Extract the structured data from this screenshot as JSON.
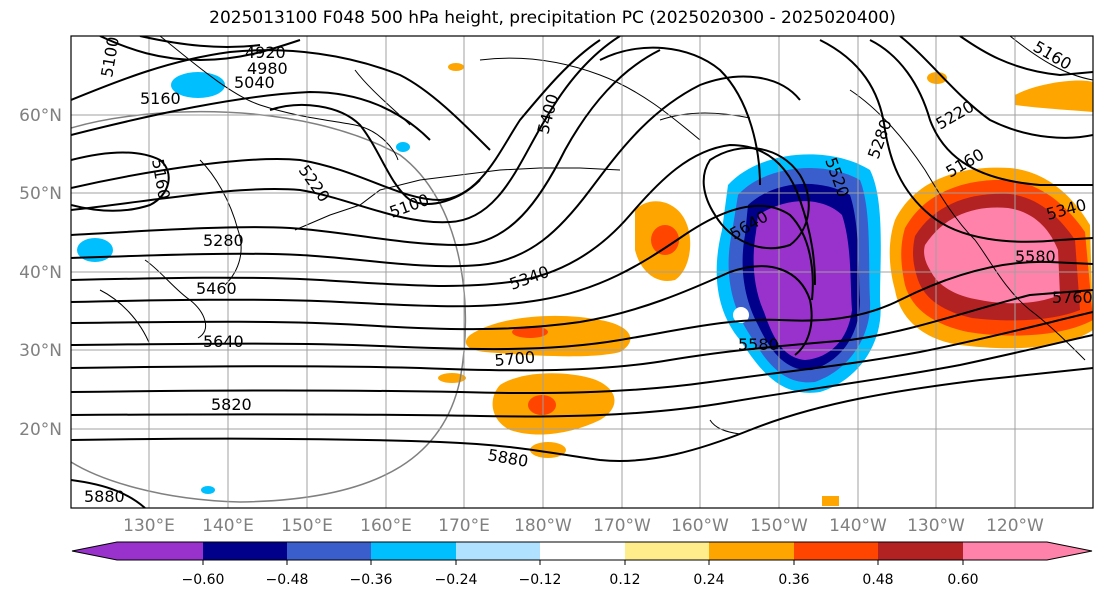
{
  "title": "2025013100 F048 500 hPa height, precipitation PC (2025020300 - 2025020400)",
  "lat_labels": [
    "60°N",
    "50°N",
    "40°N",
    "30°N",
    "20°N"
  ],
  "lon_labels": [
    "130°E",
    "140°E",
    "150°E",
    "160°E",
    "170°E",
    "180°W",
    "170°W",
    "160°W",
    "150°W",
    "140°W",
    "130°W",
    "120°W"
  ],
  "contour_labels": [
    "5100",
    "4920",
    "4980",
    "5040",
    "5160",
    "5160",
    "5220",
    "5100",
    "5400",
    "5280",
    "5460",
    "5340",
    "5640",
    "5700",
    "5820",
    "5880",
    "5880",
    "5580",
    "5640",
    "5520",
    "5160",
    "5220",
    "5280",
    "5340",
    "5580",
    "5760"
  ],
  "colorbar": {
    "ticks": [
      "−0.60",
      "−0.48",
      "−0.36",
      "−0.24",
      "−0.12",
      "0.12",
      "0.24",
      "0.36",
      "0.48",
      "0.60"
    ],
    "colors": [
      "#9932cc",
      "#00008b",
      "#3a5fcd",
      "#00bfff",
      "#b0e2ff",
      "#ffffff",
      "#ffec8b",
      "#ffa500",
      "#ff4500",
      "#b22222",
      "#ff82ab"
    ]
  }
}
